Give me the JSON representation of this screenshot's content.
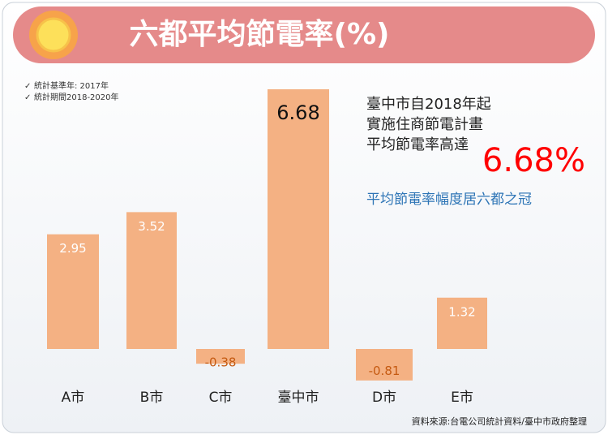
{
  "chart_data": {
    "type": "bar",
    "title": "六都平均節電率(%)",
    "notes": [
      "統計基準年: 2017年",
      "統計期間2018-2020年"
    ],
    "categories": [
      "A市",
      "B市",
      "C市",
      "臺中市",
      "D市",
      "E市"
    ],
    "values": [
      2.95,
      3.52,
      -0.38,
      6.68,
      -0.81,
      1.32
    ],
    "color": "#f4b183",
    "annotation_lines": [
      "臺中市自2018年起",
      "實施住商節電計畫",
      "平均節電率高達"
    ],
    "highlight": "6.68%",
    "highlight_color": "#ff0000",
    "tagline": "平均節電率幅度居六都之冠",
    "tagline_color": "#2e75b6",
    "source": "資料來源:台電公司統計資料/臺中市政府整理"
  }
}
